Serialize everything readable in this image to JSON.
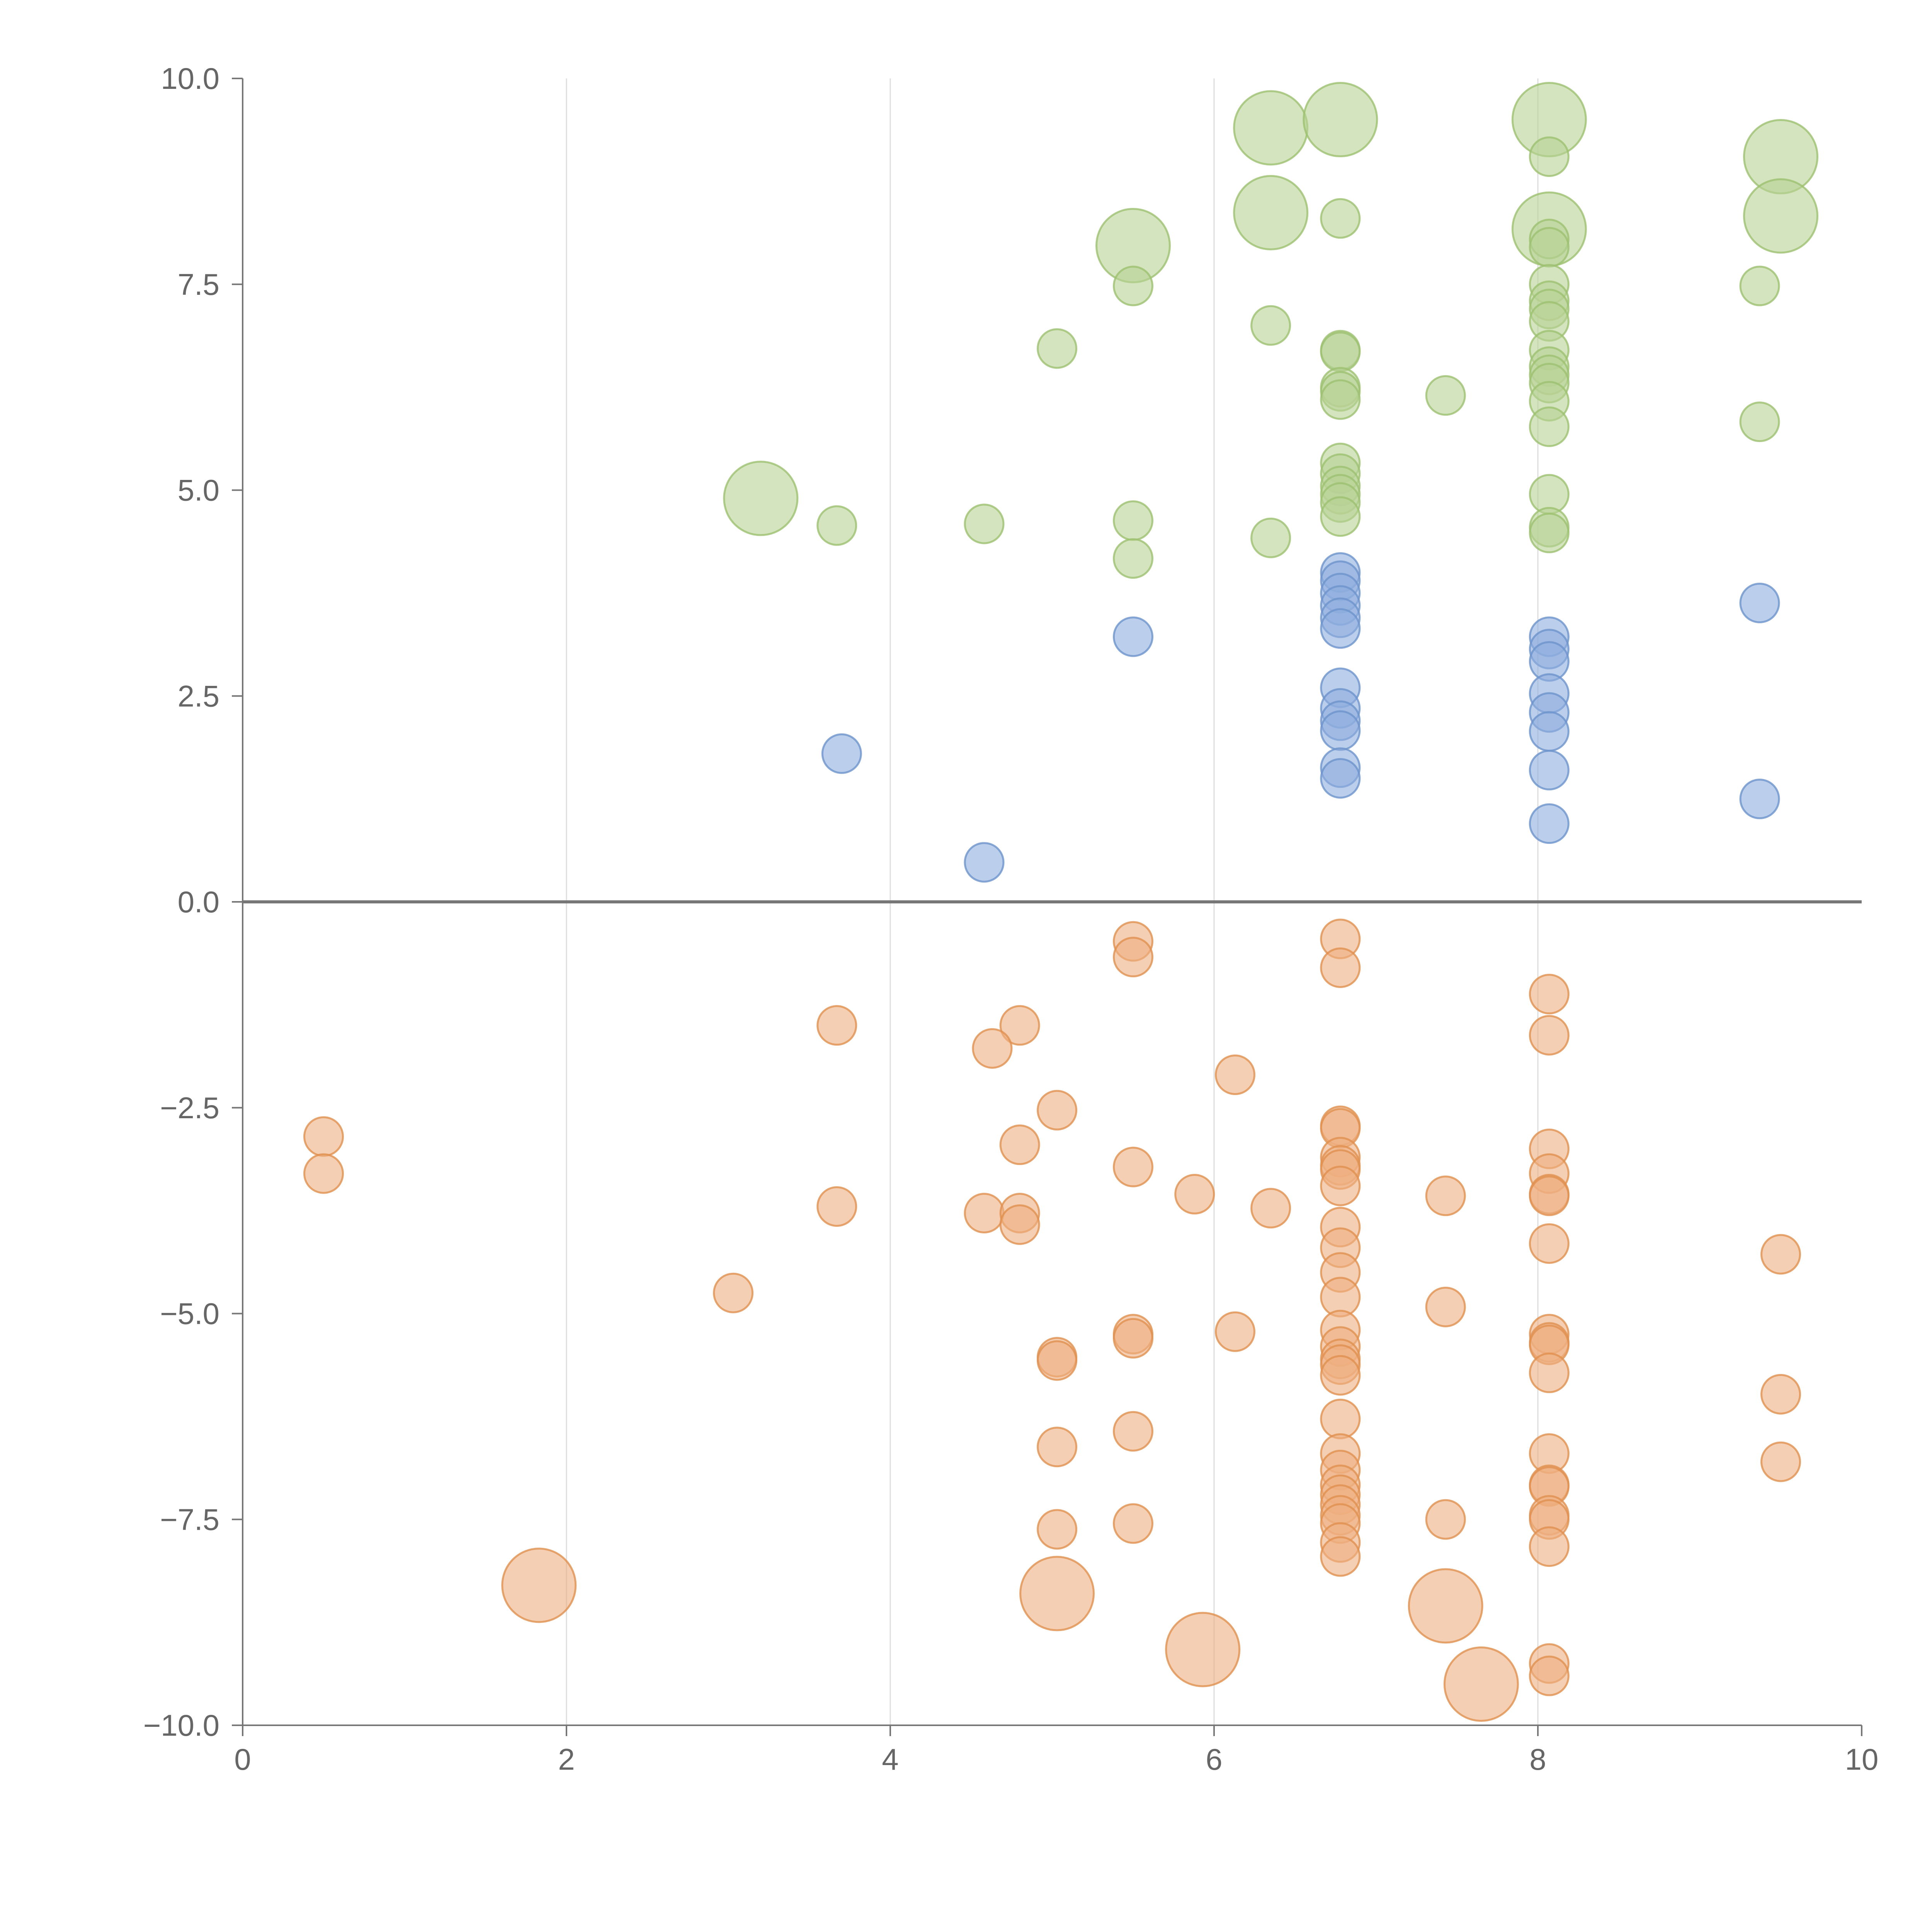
{
  "chart_data": {
    "type": "scatter",
    "title": "",
    "xlabel": "",
    "ylabel": "",
    "xlim": [
      0,
      10
    ],
    "ylim": [
      -10,
      10
    ],
    "x_ticks": [
      0,
      2,
      4,
      6,
      8,
      10
    ],
    "x_tick_labels": [
      "0",
      "2",
      "4",
      "6",
      "8",
      "10"
    ],
    "y_ticks": [
      10,
      7.5,
      5,
      2.5,
      0,
      -2.5,
      -5,
      -7.5,
      -10
    ],
    "y_tick_labels": [
      "10.0",
      "7.5",
      "5.0",
      "2.5",
      "0.0",
      "−2.5",
      "−5.0",
      "−7.5",
      "−10.0"
    ],
    "vertical_gridlines": [
      2,
      4,
      6,
      8
    ],
    "zero_line": 0,
    "legend": "none",
    "colors": {
      "green_fill": "#b7d295",
      "green_stroke": "#9cc070",
      "blue_fill": "#8eaede",
      "blue_stroke": "#6d93cc",
      "orange_fill": "#eeaf80",
      "orange_stroke": "#e0904f",
      "axis": "#777777",
      "grid": "#dddddd",
      "label": "#666666"
    },
    "series": [
      {
        "name": "green",
        "points": [
          [
            6.35,
            9.4,
            2
          ],
          [
            6.78,
            9.5,
            2
          ],
          [
            8.07,
            9.5,
            2
          ],
          [
            9.5,
            9.05,
            2
          ],
          [
            9.5,
            8.33,
            2
          ],
          [
            6.35,
            8.37,
            2
          ],
          [
            8.07,
            8.17,
            2
          ],
          [
            5.5,
            7.97,
            2
          ],
          [
            3.2,
            4.9,
            2
          ],
          [
            8.07,
            9.05,
            1
          ],
          [
            6.78,
            8.3,
            1
          ],
          [
            8.07,
            8.05,
            1
          ],
          [
            8.07,
            7.95,
            1
          ],
          [
            5.5,
            7.48,
            1
          ],
          [
            9.37,
            7.48,
            1
          ],
          [
            8.07,
            7.5,
            1
          ],
          [
            8.07,
            7.3,
            1
          ],
          [
            8.07,
            7.2,
            1
          ],
          [
            8.07,
            7.05,
            1
          ],
          [
            6.35,
            7.0,
            1
          ],
          [
            5.03,
            6.72,
            1
          ],
          [
            6.78,
            6.7,
            1
          ],
          [
            6.78,
            6.68,
            1
          ],
          [
            8.07,
            6.7,
            1
          ],
          [
            8.07,
            6.5,
            1
          ],
          [
            8.07,
            6.4,
            1
          ],
          [
            6.78,
            6.25,
            1
          ],
          [
            6.78,
            6.2,
            1
          ],
          [
            8.07,
            6.3,
            1
          ],
          [
            6.78,
            6.1,
            1
          ],
          [
            7.43,
            6.15,
            1
          ],
          [
            8.07,
            6.08,
            1
          ],
          [
            9.37,
            5.83,
            1
          ],
          [
            8.07,
            5.77,
            1
          ],
          [
            6.78,
            5.33,
            1
          ],
          [
            6.78,
            5.2,
            1
          ],
          [
            6.78,
            5.05,
            1
          ],
          [
            6.78,
            4.95,
            1
          ],
          [
            6.78,
            4.85,
            1
          ],
          [
            6.78,
            4.68,
            1
          ],
          [
            8.07,
            4.95,
            1
          ],
          [
            8.07,
            4.55,
            1
          ],
          [
            8.07,
            4.48,
            1
          ],
          [
            5.5,
            4.63,
            1
          ],
          [
            3.67,
            4.57,
            1
          ],
          [
            4.58,
            4.59,
            1
          ],
          [
            6.35,
            4.42,
            1
          ],
          [
            5.5,
            4.17,
            1
          ]
        ]
      },
      {
        "name": "blue",
        "points": [
          [
            6.78,
            4.0,
            1
          ],
          [
            6.78,
            3.9,
            1
          ],
          [
            6.78,
            3.75,
            1
          ],
          [
            6.78,
            3.6,
            1
          ],
          [
            6.78,
            3.45,
            1
          ],
          [
            6.78,
            3.32,
            1
          ],
          [
            9.37,
            3.63,
            1
          ],
          [
            5.5,
            3.22,
            1
          ],
          [
            8.07,
            3.22,
            1
          ],
          [
            8.07,
            3.07,
            1
          ],
          [
            8.07,
            2.92,
            1
          ],
          [
            6.78,
            2.6,
            1
          ],
          [
            6.78,
            2.35,
            1
          ],
          [
            6.78,
            2.2,
            1
          ],
          [
            6.78,
            2.08,
            1
          ],
          [
            8.07,
            2.53,
            1
          ],
          [
            8.07,
            2.3,
            1
          ],
          [
            8.07,
            2.07,
            1
          ],
          [
            3.7,
            1.8,
            1
          ],
          [
            6.78,
            1.63,
            1
          ],
          [
            6.78,
            1.5,
            1
          ],
          [
            8.07,
            1.6,
            1
          ],
          [
            9.37,
            1.25,
            1
          ],
          [
            8.07,
            0.95,
            1
          ],
          [
            4.58,
            0.48,
            1
          ]
        ]
      },
      {
        "name": "orange",
        "points": [
          [
            5.5,
            -0.48,
            1
          ],
          [
            5.5,
            -0.67,
            1
          ],
          [
            6.78,
            -0.45,
            1
          ],
          [
            6.78,
            -0.8,
            1
          ],
          [
            8.07,
            -1.12,
            1
          ],
          [
            8.07,
            -1.62,
            1
          ],
          [
            3.67,
            -1.5,
            1
          ],
          [
            4.8,
            -1.5,
            1
          ],
          [
            4.63,
            -1.78,
            1
          ],
          [
            6.13,
            -2.1,
            1
          ],
          [
            5.03,
            -2.53,
            1
          ],
          [
            0.5,
            -2.85,
            1
          ],
          [
            0.5,
            -3.3,
            1
          ],
          [
            4.8,
            -2.95,
            1
          ],
          [
            5.5,
            -3.22,
            1
          ],
          [
            6.78,
            -2.72,
            1
          ],
          [
            6.78,
            -2.75,
            1
          ],
          [
            6.78,
            -3.1,
            1
          ],
          [
            6.78,
            -3.2,
            1
          ],
          [
            6.78,
            -3.25,
            1
          ],
          [
            6.78,
            -3.45,
            1
          ],
          [
            8.07,
            -3.0,
            1
          ],
          [
            8.07,
            -3.3,
            1
          ],
          [
            8.07,
            -3.55,
            1
          ],
          [
            8.07,
            -3.57,
            1
          ],
          [
            5.88,
            -3.55,
            1
          ],
          [
            7.43,
            -3.57,
            1
          ],
          [
            3.67,
            -3.7,
            1
          ],
          [
            6.35,
            -3.72,
            1
          ],
          [
            4.58,
            -3.78,
            1
          ],
          [
            4.8,
            -3.78,
            1
          ],
          [
            4.8,
            -3.92,
            1
          ],
          [
            6.78,
            -3.95,
            1
          ],
          [
            6.78,
            -4.2,
            1
          ],
          [
            8.07,
            -4.15,
            1
          ],
          [
            9.5,
            -4.28,
            1
          ],
          [
            6.78,
            -4.5,
            1
          ],
          [
            3.03,
            -4.75,
            1
          ],
          [
            6.78,
            -4.8,
            1
          ],
          [
            7.43,
            -4.92,
            1
          ],
          [
            6.13,
            -5.22,
            1
          ],
          [
            5.5,
            -5.25,
            1
          ],
          [
            5.5,
            -5.3,
            1
          ],
          [
            6.78,
            -5.2,
            1
          ],
          [
            6.78,
            -5.4,
            1
          ],
          [
            6.78,
            -5.55,
            1
          ],
          [
            6.78,
            -5.62,
            1
          ],
          [
            6.78,
            -5.75,
            1
          ],
          [
            8.07,
            -5.25,
            1
          ],
          [
            8.07,
            -5.35,
            1
          ],
          [
            8.07,
            -5.38,
            1
          ],
          [
            8.07,
            -5.72,
            1
          ],
          [
            5.03,
            -5.53,
            1
          ],
          [
            5.03,
            -5.57,
            1
          ],
          [
            9.5,
            -5.98,
            1
          ],
          [
            6.78,
            -6.28,
            1
          ],
          [
            5.5,
            -6.43,
            1
          ],
          [
            5.03,
            -6.62,
            1
          ],
          [
            6.78,
            -6.7,
            1
          ],
          [
            8.07,
            -6.7,
            1
          ],
          [
            9.5,
            -6.8,
            1
          ],
          [
            6.78,
            -6.9,
            1
          ],
          [
            6.78,
            -7.08,
            1
          ],
          [
            6.78,
            -7.2,
            1
          ],
          [
            6.78,
            -7.32,
            1
          ],
          [
            6.78,
            -7.45,
            1
          ],
          [
            6.78,
            -7.55,
            1
          ],
          [
            8.07,
            -7.08,
            1
          ],
          [
            8.07,
            -7.1,
            1
          ],
          [
            8.07,
            -7.45,
            1
          ],
          [
            8.07,
            -7.5,
            1
          ],
          [
            7.43,
            -7.5,
            1
          ],
          [
            5.5,
            -7.55,
            1
          ],
          [
            5.03,
            -7.62,
            1
          ],
          [
            6.78,
            -7.78,
            1
          ],
          [
            6.78,
            -7.95,
            1
          ],
          [
            8.07,
            -7.83,
            1
          ],
          [
            1.83,
            -8.3,
            2
          ],
          [
            5.03,
            -8.4,
            2
          ],
          [
            7.43,
            -8.55,
            2
          ],
          [
            5.93,
            -9.08,
            2
          ],
          [
            7.65,
            -9.5,
            2
          ],
          [
            8.07,
            -9.25,
            1
          ],
          [
            8.07,
            -9.4,
            1
          ]
        ]
      }
    ]
  }
}
